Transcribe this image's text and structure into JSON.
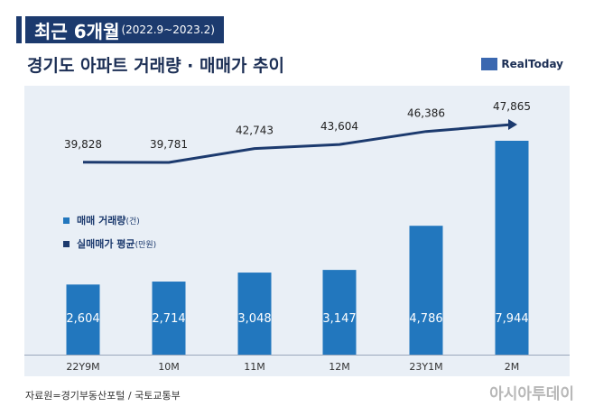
{
  "header": {
    "title": "최근 6개월",
    "period": "(2022.9~2023.2)",
    "subtitle": "경기도 아파트 거래량 · 매매가 추이"
  },
  "logo": {
    "text": "RealToday"
  },
  "legend": {
    "volume_label": "매매 거래량",
    "volume_unit": "(건)",
    "price_label": "실매매가 평균",
    "price_unit": "(만원)"
  },
  "footer": {
    "source": "자료원=경기부동산포털 / 국토교통부",
    "brand": "아시아투데이"
  },
  "colors": {
    "bar": "#2277be",
    "line": "#1c3a6e",
    "panel": "#e9eff6"
  },
  "chart_data": {
    "type": "bar",
    "categories": [
      "22Y9M",
      "10M",
      "11M",
      "12M",
      "23Y1M",
      "2M"
    ],
    "series": [
      {
        "name": "매매 거래량(건)",
        "type": "bar",
        "values": [
          2604,
          2714,
          3048,
          3147,
          4786,
          7944
        ],
        "labels": [
          "2,604",
          "2,714",
          "3,048",
          "3,147",
          "4,786",
          "7,944"
        ]
      },
      {
        "name": "실매매가 평균(만원)",
        "type": "line",
        "values": [
          39828,
          39781,
          42743,
          43604,
          46386,
          47865
        ],
        "labels": [
          "39,828",
          "39,781",
          "42,743",
          "43,604",
          "46,386",
          "47,865"
        ]
      }
    ],
    "title": "경기도 아파트 거래량 · 매매가 추이",
    "grid": false,
    "legend_position": "middle-left"
  }
}
